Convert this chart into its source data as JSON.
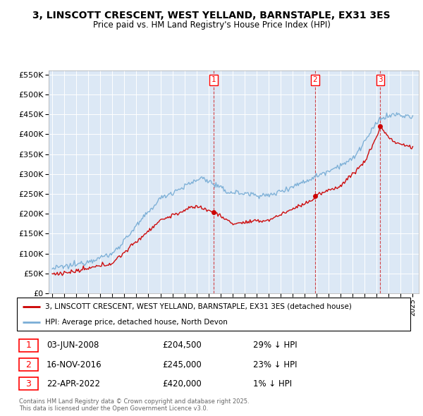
{
  "title": "3, LINSCOTT CRESCENT, WEST YELLAND, BARNSTAPLE, EX31 3ES",
  "subtitle": "Price paid vs. HM Land Registry's House Price Index (HPI)",
  "sale_prices": [
    204500,
    245000,
    420000
  ],
  "sale_labels": [
    "1",
    "2",
    "3"
  ],
  "sale_hpi_diff": [
    "29% ↓ HPI",
    "23% ↓ HPI",
    "1% ↓ HPI"
  ],
  "sale_dates_str": [
    "03-JUN-2008",
    "16-NOV-2016",
    "22-APR-2022"
  ],
  "sale_year_nums": [
    2008.42,
    2016.87,
    2022.3
  ],
  "legend_property": "3, LINSCOTT CRESCENT, WEST YELLAND, BARNSTAPLE, EX31 3ES (detached house)",
  "legend_hpi": "HPI: Average price, detached house, North Devon",
  "sale_prices_fmt": [
    "£204,500",
    "£245,000",
    "£420,000"
  ],
  "footnote1": "Contains HM Land Registry data © Crown copyright and database right 2025.",
  "footnote2": "This data is licensed under the Open Government Licence v3.0.",
  "property_color": "#cc0000",
  "hpi_color": "#7aaed6",
  "ylim": [
    0,
    560000
  ],
  "yticks": [
    0,
    50000,
    100000,
    150000,
    200000,
    250000,
    300000,
    350000,
    400000,
    450000,
    500000,
    550000
  ],
  "ytick_labels": [
    "£0",
    "£50K",
    "£100K",
    "£150K",
    "£200K",
    "£250K",
    "£300K",
    "£350K",
    "£400K",
    "£450K",
    "£500K",
    "£550K"
  ],
  "background_color": "#dce8f5",
  "xlim_min": 1994.7,
  "xlim_max": 2025.5
}
